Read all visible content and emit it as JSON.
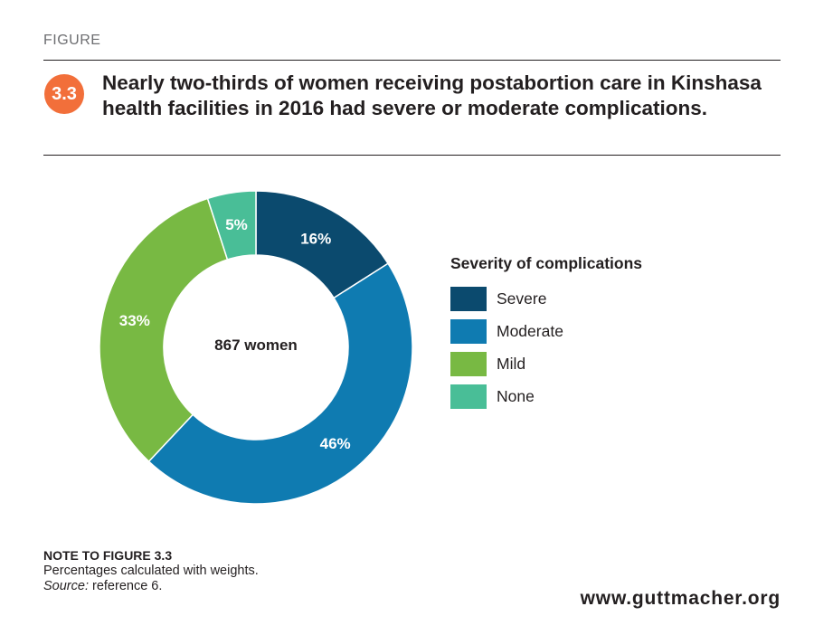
{
  "header": {
    "figure_label": "FIGURE",
    "figure_number": "3.3",
    "title": "Nearly two-thirds of women receiving postabortion care in Kinshasa health facilities in 2016 had severe or moderate complications."
  },
  "chart_data": {
    "type": "pie",
    "donut": true,
    "center_label": "867 women",
    "legend_title": "Severity of complications",
    "legend_position": "right",
    "categories": [
      "Severe",
      "Moderate",
      "Mild",
      "None"
    ],
    "values": [
      16,
      46,
      33,
      5
    ],
    "value_labels": [
      "16%",
      "46%",
      "33%",
      "5%"
    ],
    "colors": [
      "#0b4a6e",
      "#0f7bb1",
      "#78b943",
      "#49be97"
    ]
  },
  "note": {
    "title": "NOTE TO FIGURE 3.3",
    "text": "Percentages calculated with weights.",
    "source_label": "Source:",
    "source_text": " reference 6."
  },
  "footer": {
    "url": "www.guttmacher.org"
  }
}
